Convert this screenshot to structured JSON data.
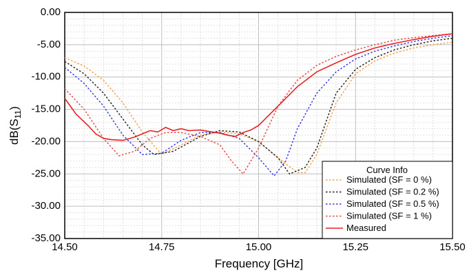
{
  "chart_data": {
    "type": "line",
    "xlabel": "Frequency [GHz]",
    "ylabel_main": "dB(S",
    "ylabel_sub": "11",
    "ylabel_end": ")",
    "xlim": [
      14.5,
      15.5
    ],
    "ylim": [
      -35,
      0
    ],
    "x_ticks": [
      "14.50",
      "14.75",
      "15.00",
      "15.25",
      "15.50"
    ],
    "x_tick_values": [
      14.5,
      14.75,
      15.0,
      15.25,
      15.5
    ],
    "y_ticks": [
      "0.00",
      "-5.00",
      "-10.00",
      "-15.00",
      "-20.00",
      "-25.00",
      "-30.00",
      "-35.00"
    ],
    "y_tick_values": [
      0,
      -5,
      -10,
      -15,
      -20,
      -25,
      -30,
      -35
    ],
    "grid": true,
    "legend_title": "Curve Info",
    "legend_position": "bottom-right",
    "series": [
      {
        "name": "Simulated (SF = 0 %)",
        "color": "#f5a04a",
        "style": "dotted",
        "x": [
          14.5,
          14.55,
          14.6,
          14.65,
          14.7,
          14.75,
          14.8,
          14.85,
          14.9,
          14.95,
          15.0,
          15.05,
          15.1,
          15.12,
          15.15,
          15.2,
          15.25,
          15.3,
          15.35,
          15.4,
          15.45,
          15.5
        ],
        "y": [
          -7.0,
          -8.3,
          -10.5,
          -14.0,
          -18.5,
          -22.0,
          -20.5,
          -19.0,
          -18.5,
          -18.8,
          -20.0,
          -22.5,
          -24.8,
          -24.8,
          -22.0,
          -14.0,
          -9.5,
          -7.5,
          -6.3,
          -5.5,
          -5.0,
          -4.6
        ]
      },
      {
        "name": "Simulated (SF = 0.2 %)",
        "color": "#222222",
        "style": "dotted",
        "x": [
          14.5,
          14.55,
          14.6,
          14.65,
          14.7,
          14.73,
          14.78,
          14.85,
          14.9,
          14.95,
          15.0,
          15.05,
          15.08,
          15.12,
          15.15,
          15.2,
          15.25,
          15.3,
          15.35,
          15.4,
          15.45,
          15.5
        ],
        "y": [
          -7.6,
          -9.5,
          -12.5,
          -16.5,
          -20.5,
          -22.0,
          -21.5,
          -19.2,
          -18.3,
          -18.5,
          -20.0,
          -22.5,
          -25.0,
          -24.0,
          -21.0,
          -12.5,
          -8.8,
          -7.0,
          -5.8,
          -5.0,
          -4.4,
          -4.0
        ]
      },
      {
        "name": "Simulated (SF = 0.5 %)",
        "color": "#3a3ae8",
        "style": "dotted",
        "x": [
          14.5,
          14.55,
          14.6,
          14.65,
          14.7,
          14.75,
          14.8,
          14.85,
          14.9,
          14.95,
          15.0,
          15.04,
          15.07,
          15.1,
          15.15,
          15.2,
          15.25,
          15.3,
          15.35,
          15.4,
          15.45,
          15.5
        ],
        "y": [
          -8.5,
          -11.0,
          -14.5,
          -19.0,
          -22.0,
          -21.8,
          -19.8,
          -18.6,
          -18.6,
          -19.5,
          -22.5,
          -25.3,
          -23.0,
          -18.0,
          -12.5,
          -9.2,
          -7.2,
          -6.0,
          -5.2,
          -4.5,
          -4.0,
          -3.6
        ]
      },
      {
        "name": "Simulated (SF = 1 %)",
        "color": "#e84a4a",
        "style": "dotted",
        "x": [
          14.5,
          14.55,
          14.6,
          14.64,
          14.68,
          14.72,
          14.76,
          14.8,
          14.85,
          14.9,
          14.93,
          14.96,
          15.0,
          15.05,
          15.1,
          15.15,
          15.2,
          15.25,
          15.3,
          15.35,
          15.4,
          15.45,
          15.5
        ],
        "y": [
          -11.8,
          -15.0,
          -19.5,
          -22.2,
          -21.5,
          -19.5,
          -18.6,
          -18.6,
          -19.2,
          -20.5,
          -23.0,
          -25.0,
          -21.0,
          -14.5,
          -10.5,
          -8.2,
          -6.8,
          -5.8,
          -5.0,
          -4.3,
          -3.9,
          -3.6,
          -3.3
        ]
      },
      {
        "name": "Measured",
        "color": "#e82020",
        "style": "solid",
        "x": [
          14.5,
          14.53,
          14.56,
          14.58,
          14.6,
          14.62,
          14.65,
          14.68,
          14.7,
          14.72,
          14.74,
          14.76,
          14.78,
          14.8,
          14.82,
          14.85,
          14.88,
          14.9,
          14.92,
          14.94,
          14.96,
          14.98,
          15.0,
          15.05,
          15.1,
          15.15,
          15.2,
          15.25,
          15.3,
          15.35,
          15.4,
          15.45,
          15.5
        ],
        "y": [
          -13.3,
          -15.8,
          -17.5,
          -18.8,
          -19.5,
          -19.7,
          -19.8,
          -19.3,
          -18.8,
          -18.3,
          -18.5,
          -17.8,
          -18.3,
          -18.0,
          -18.3,
          -18.2,
          -18.5,
          -18.7,
          -19.0,
          -19.2,
          -18.6,
          -18.2,
          -17.5,
          -14.5,
          -11.5,
          -9.2,
          -7.8,
          -6.5,
          -5.5,
          -4.8,
          -4.2,
          -3.7,
          -3.3
        ]
      }
    ]
  }
}
